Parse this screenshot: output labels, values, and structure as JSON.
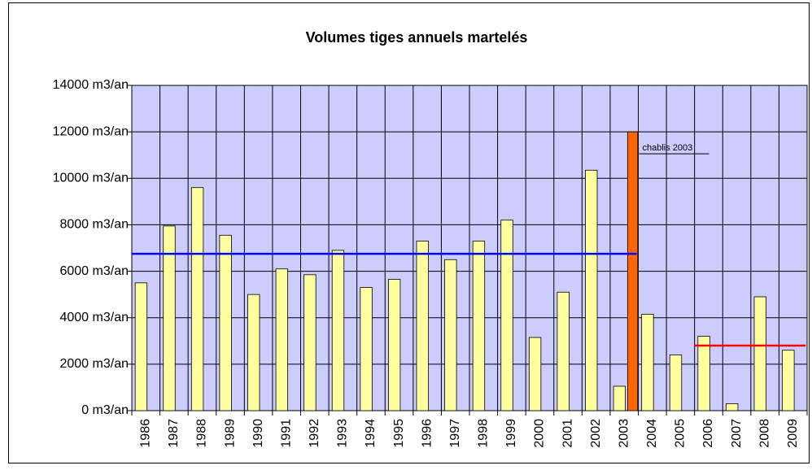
{
  "chart_data": {
    "type": "bar",
    "title": "Volumes tiges annuels martelés",
    "categories": [
      "1986",
      "1987",
      "1988",
      "1989",
      "1990",
      "1991",
      "1992",
      "1993",
      "1994",
      "1995",
      "1996",
      "1997",
      "1998",
      "1999",
      "2000",
      "2001",
      "2002",
      "2003",
      "2004",
      "2005",
      "2006",
      "2007",
      "2008",
      "2009"
    ],
    "series": [
      {
        "color": "#ffffa0",
        "values": [
          5500,
          7950,
          9600,
          7550,
          5000,
          6100,
          5850,
          6900,
          5300,
          5650,
          7300,
          6500,
          7300,
          8200,
          3150,
          5100,
          10350,
          1050,
          4150,
          2400,
          3200,
          300,
          4900,
          2600
        ]
      },
      {
        "color": "#ff6600",
        "values": [
          null,
          null,
          null,
          null,
          null,
          null,
          null,
          null,
          null,
          null,
          null,
          null,
          null,
          null,
          null,
          null,
          null,
          12000,
          null,
          null,
          null,
          null,
          null,
          null
        ]
      }
    ],
    "reference_lines": [
      {
        "value": 6750,
        "color": "#0000ff",
        "start": 0,
        "end": 17
      },
      {
        "value": 2800,
        "color": "#ff0000",
        "start": 20,
        "end": 23
      }
    ],
    "annotation": "chablis 2003",
    "ylim": [
      0,
      14000
    ],
    "yticks": [
      {
        "value": 0,
        "label": "0 m3/an"
      },
      {
        "value": 2000,
        "label": "2000 m3/an"
      },
      {
        "value": 4000,
        "label": "4000 m3/an"
      },
      {
        "value": 6000,
        "label": "6000 m3/an"
      },
      {
        "value": 8000,
        "label": "8000 m3/an"
      },
      {
        "value": 10000,
        "label": "10000 m3/an"
      },
      {
        "value": 12000,
        "label": "12000 m3/an"
      },
      {
        "value": 14000,
        "label": "14000 m3/an"
      }
    ],
    "grid": true,
    "plot_color": "#ccccff"
  }
}
